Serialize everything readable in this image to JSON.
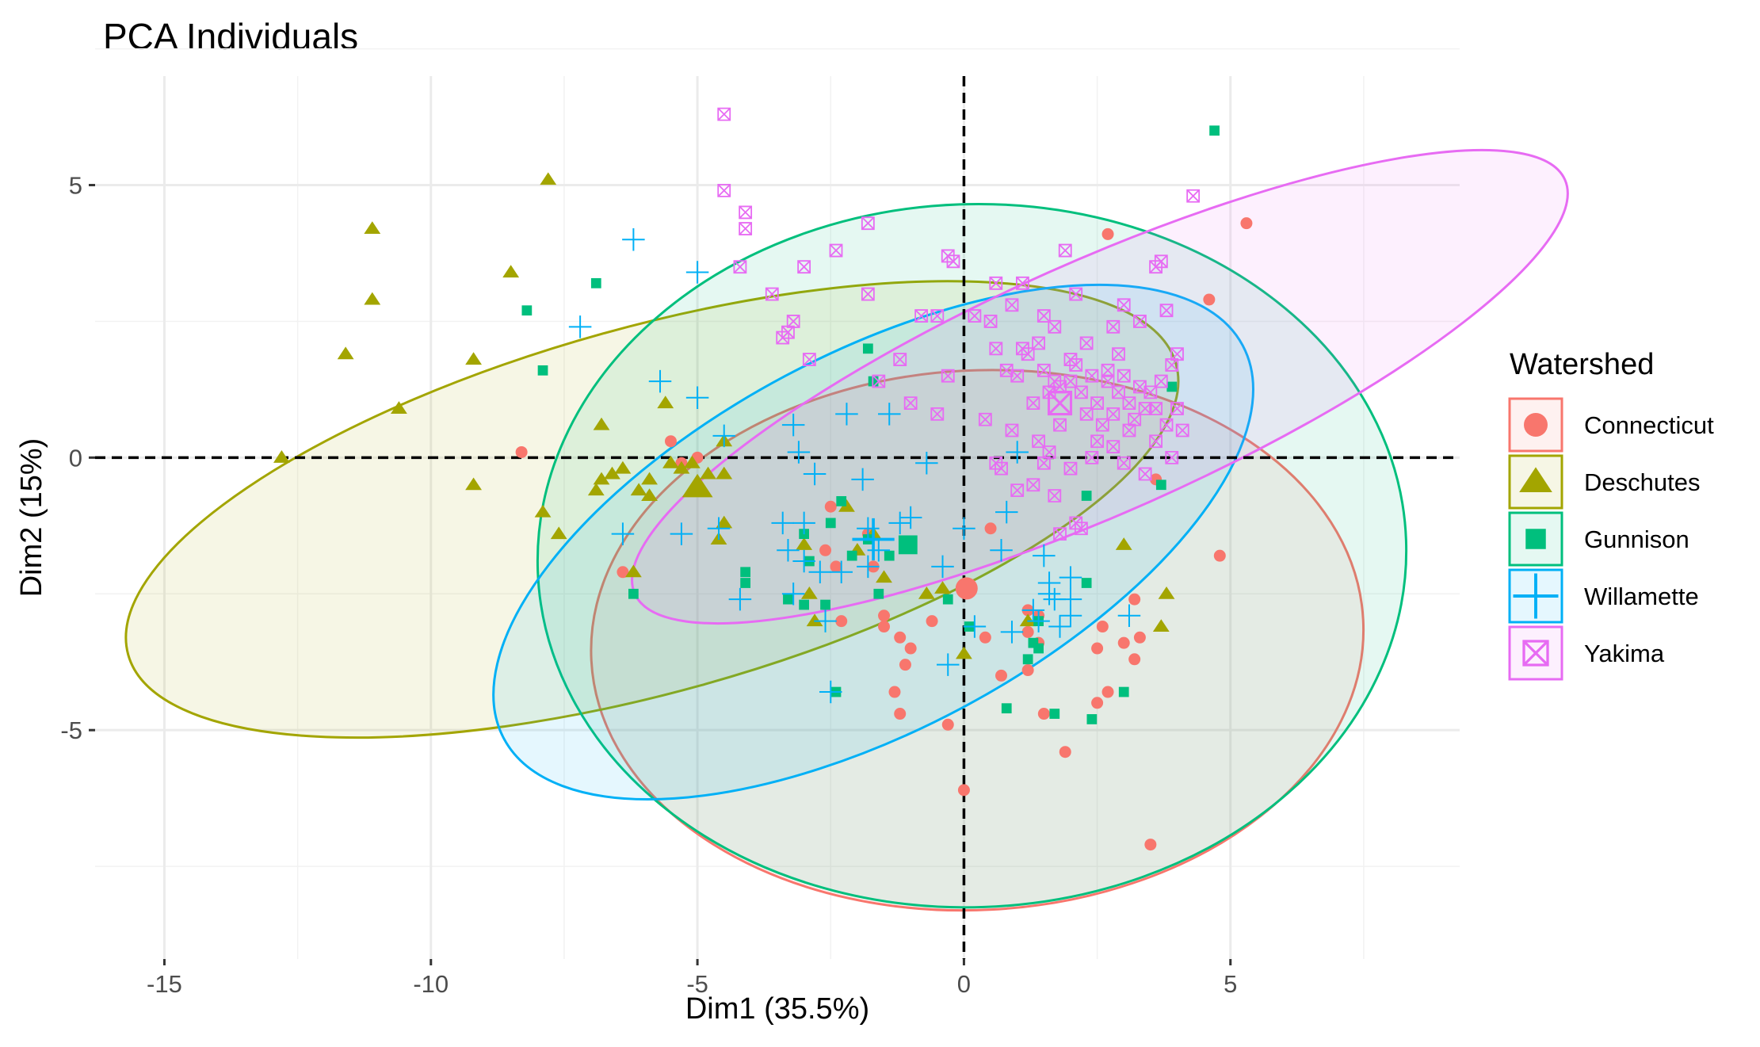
{
  "chart_data": {
    "type": "scatter",
    "title": "PCA Individuals",
    "xlabel": "Dim1 (35.5%)",
    "ylabel": "Dim2 (15%)",
    "xlim": [
      -16.3,
      9.3
    ],
    "ylim": [
      -9.2,
      7.0
    ],
    "x_ticks": [
      -15,
      -10,
      -5,
      0,
      5
    ],
    "x_tick_labels": [
      "-15",
      "-10",
      "-5",
      "0",
      "5"
    ],
    "y_ticks": [
      -5,
      0,
      5
    ],
    "y_tick_labels": [
      "-5",
      "0",
      "5"
    ],
    "grid": true,
    "reference_lines": {
      "x": 0,
      "y": 0,
      "style": "dashed"
    },
    "legend": {
      "title": "Watershed",
      "position": "right"
    },
    "series": [
      {
        "name": "Connecticut",
        "color": "#F8766D",
        "marker": "circle",
        "centroid": [
          0.05,
          -2.4
        ],
        "ellipse": {
          "cx": 0.25,
          "cy": -3.35,
          "rx": 7.25,
          "ry": 4.95,
          "angle": -3
        },
        "points": [
          [
            -8.3,
            0.1
          ],
          [
            -6.4,
            -2.1
          ],
          [
            -5.5,
            0.3
          ],
          [
            -5.3,
            -0.1
          ],
          [
            -5.0,
            0.0
          ],
          [
            -2.5,
            -0.9
          ],
          [
            -2.6,
            -1.7
          ],
          [
            -2.4,
            -2.0
          ],
          [
            -1.8,
            -1.4
          ],
          [
            -1.7,
            -2.0
          ],
          [
            -1.5,
            -2.9
          ],
          [
            -2.3,
            -3.0
          ],
          [
            -1.5,
            -3.1
          ],
          [
            -1.2,
            -3.3
          ],
          [
            -1.0,
            -3.5
          ],
          [
            -1.1,
            -3.8
          ],
          [
            -1.3,
            -4.3
          ],
          [
            -1.2,
            -4.7
          ],
          [
            -0.6,
            -3.0
          ],
          [
            -0.3,
            -4.9
          ],
          [
            0.0,
            -6.1
          ],
          [
            0.5,
            -1.3
          ],
          [
            0.4,
            -3.3
          ],
          [
            0.7,
            -4.0
          ],
          [
            1.2,
            -2.8
          ],
          [
            1.2,
            -3.2
          ],
          [
            1.2,
            -3.9
          ],
          [
            1.4,
            -2.9
          ],
          [
            1.4,
            -3.4
          ],
          [
            1.5,
            -4.7
          ],
          [
            1.9,
            -5.4
          ],
          [
            2.5,
            -3.5
          ],
          [
            2.6,
            -3.1
          ],
          [
            2.7,
            -4.3
          ],
          [
            2.5,
            -4.5
          ],
          [
            3.0,
            -3.4
          ],
          [
            3.2,
            -3.7
          ],
          [
            3.2,
            -2.6
          ],
          [
            3.5,
            -7.1
          ],
          [
            3.3,
            -3.3
          ],
          [
            2.7,
            4.1
          ],
          [
            3.6,
            -0.4
          ],
          [
            4.6,
            2.9
          ],
          [
            4.8,
            -1.8
          ],
          [
            5.3,
            4.3
          ]
        ]
      },
      {
        "name": "Deschutes",
        "color": "#A3A500",
        "marker": "triangle",
        "centroid": [
          -5.0,
          -0.55
        ],
        "ellipse": {
          "cx": -5.85,
          "cy": -0.95,
          "rx": 10.2,
          "ry": 3.35,
          "angle": -15.5
        },
        "points": [
          [
            -12.8,
            0.0
          ],
          [
            -11.6,
            1.9
          ],
          [
            -11.1,
            2.9
          ],
          [
            -11.1,
            4.2
          ],
          [
            -10.6,
            0.9
          ],
          [
            -9.2,
            1.8
          ],
          [
            -9.2,
            -0.5
          ],
          [
            -8.5,
            3.4
          ],
          [
            -7.8,
            5.1
          ],
          [
            -7.9,
            -1.0
          ],
          [
            -7.6,
            -1.4
          ],
          [
            -6.8,
            -0.4
          ],
          [
            -6.8,
            0.6
          ],
          [
            -6.9,
            -0.6
          ],
          [
            -6.6,
            -0.3
          ],
          [
            -6.4,
            -0.2
          ],
          [
            -6.1,
            -0.6
          ],
          [
            -6.2,
            -2.1
          ],
          [
            -5.9,
            -0.4
          ],
          [
            -5.9,
            -0.7
          ],
          [
            -5.5,
            -0.1
          ],
          [
            -5.6,
            1.0
          ],
          [
            -5.3,
            -0.2
          ],
          [
            -5.1,
            -0.1
          ],
          [
            -4.6,
            -1.5
          ],
          [
            -4.5,
            -0.3
          ],
          [
            -4.5,
            0.3
          ],
          [
            -4.8,
            -0.3
          ],
          [
            -4.5,
            -1.2
          ],
          [
            -3.0,
            -1.6
          ],
          [
            -2.9,
            -2.5
          ],
          [
            -2.8,
            -3.0
          ],
          [
            -2.2,
            -0.9
          ],
          [
            -2.0,
            -1.7
          ],
          [
            -1.7,
            -1.4
          ],
          [
            -1.5,
            -2.2
          ],
          [
            -0.7,
            -2.5
          ],
          [
            -0.4,
            -2.4
          ],
          [
            0.0,
            -3.6
          ],
          [
            1.2,
            -3.0
          ],
          [
            3.0,
            -1.6
          ],
          [
            3.8,
            -2.5
          ],
          [
            3.7,
            -3.1
          ]
        ]
      },
      {
        "name": "Gunnison",
        "color": "#00BF7D",
        "marker": "square",
        "centroid": [
          -1.05,
          -1.6
        ],
        "ellipse": {
          "cx": 0.15,
          "cy": -1.8,
          "rx": 8.15,
          "ry": 6.45,
          "angle": -2
        },
        "points": [
          [
            -8.2,
            2.7
          ],
          [
            -7.9,
            1.6
          ],
          [
            -6.9,
            3.2
          ],
          [
            -6.2,
            -2.5
          ],
          [
            -4.1,
            -2.1
          ],
          [
            -4.1,
            -2.3
          ],
          [
            -3.3,
            -2.6
          ],
          [
            -3.0,
            -2.7
          ],
          [
            -3.0,
            -1.4
          ],
          [
            -2.9,
            -1.9
          ],
          [
            -2.6,
            -2.7
          ],
          [
            -2.5,
            -1.2
          ],
          [
            -2.3,
            -0.8
          ],
          [
            -2.4,
            -4.3
          ],
          [
            -2.1,
            -1.8
          ],
          [
            -1.8,
            -1.5
          ],
          [
            -1.8,
            2.0
          ],
          [
            -1.7,
            1.4
          ],
          [
            -1.6,
            -2.5
          ],
          [
            -1.4,
            -1.8
          ],
          [
            -0.3,
            -2.6
          ],
          [
            0.1,
            -3.1
          ],
          [
            0.8,
            -4.6
          ],
          [
            1.3,
            -3.4
          ],
          [
            1.2,
            -3.7
          ],
          [
            1.4,
            -3.5
          ],
          [
            1.4,
            -3.0
          ],
          [
            1.7,
            -4.7
          ],
          [
            2.3,
            -2.3
          ],
          [
            2.4,
            -4.8
          ],
          [
            2.3,
            -0.7
          ],
          [
            3.0,
            -4.3
          ],
          [
            3.7,
            -0.5
          ],
          [
            3.9,
            1.3
          ],
          [
            4.7,
            6.0
          ]
        ]
      },
      {
        "name": "Willamette",
        "color": "#00B0F6",
        "marker": "plus",
        "centroid": [
          -1.7,
          -1.5
        ],
        "ellipse": {
          "cx": -1.7,
          "cy": -1.55,
          "rx": 7.85,
          "ry": 3.45,
          "angle": -28
        },
        "points": [
          [
            -6.2,
            4.0
          ],
          [
            -5.0,
            3.4
          ],
          [
            -7.2,
            2.4
          ],
          [
            -5.7,
            1.4
          ],
          [
            -5.0,
            1.1
          ],
          [
            -4.5,
            0.4
          ],
          [
            -6.4,
            -1.4
          ],
          [
            -5.3,
            -1.4
          ],
          [
            -4.6,
            -1.3
          ],
          [
            -4.2,
            -2.6
          ],
          [
            -3.4,
            -1.2
          ],
          [
            -3.3,
            -1.7
          ],
          [
            -3.2,
            -2.5
          ],
          [
            -3.0,
            -1.9
          ],
          [
            -3.2,
            0.6
          ],
          [
            -3.1,
            0.1
          ],
          [
            -2.8,
            -0.3
          ],
          [
            -3.0,
            -1.2
          ],
          [
            -2.7,
            -2.1
          ],
          [
            -2.6,
            -3.0
          ],
          [
            -2.3,
            -2.1
          ],
          [
            -2.2,
            0.8
          ],
          [
            -1.8,
            -2.0
          ],
          [
            -1.8,
            -1.3
          ],
          [
            -1.9,
            -0.4
          ],
          [
            -1.6,
            -1.7
          ],
          [
            -1.4,
            0.8
          ],
          [
            -1.0,
            -1.1
          ],
          [
            -0.7,
            -0.1
          ],
          [
            -0.4,
            -2.0
          ],
          [
            0.0,
            -1.3
          ],
          [
            0.2,
            -3.1
          ],
          [
            0.7,
            -1.7
          ],
          [
            0.8,
            -1.0
          ],
          [
            1.3,
            -2.8
          ],
          [
            1.4,
            -3.0
          ],
          [
            1.5,
            -1.8
          ],
          [
            1.6,
            -2.3
          ],
          [
            1.6,
            -2.5
          ],
          [
            1.7,
            -2.6
          ],
          [
            1.8,
            -3.1
          ],
          [
            0.9,
            -3.2
          ],
          [
            2.0,
            -2.9
          ],
          [
            2.0,
            -2.2
          ],
          [
            2.0,
            -2.6
          ],
          [
            3.1,
            -2.9
          ],
          [
            -2.5,
            -4.3
          ],
          [
            -0.3,
            -3.8
          ],
          [
            -1.2,
            -1.2
          ],
          [
            1.0,
            0.1
          ]
        ]
      },
      {
        "name": "Yakima",
        "color": "#E76BF3",
        "marker": "square-x",
        "centroid": [
          1.8,
          1.0
        ],
        "ellipse": {
          "cx": 2.55,
          "cy": 1.3,
          "rx": 9.55,
          "ry": 2.3,
          "angle": -24
        },
        "points": [
          [
            -4.5,
            6.3
          ],
          [
            -4.5,
            4.9
          ],
          [
            -4.1,
            4.5
          ],
          [
            -4.1,
            4.2
          ],
          [
            -4.2,
            3.5
          ],
          [
            -3.6,
            3.0
          ],
          [
            -3.4,
            2.2
          ],
          [
            -3.0,
            3.5
          ],
          [
            -3.3,
            2.3
          ],
          [
            -2.9,
            1.8
          ],
          [
            -3.2,
            2.5
          ],
          [
            -2.4,
            3.8
          ],
          [
            -1.8,
            4.3
          ],
          [
            -1.8,
            3.0
          ],
          [
            -1.6,
            1.4
          ],
          [
            -1.2,
            1.8
          ],
          [
            -1.0,
            1.0
          ],
          [
            -0.8,
            2.6
          ],
          [
            -0.5,
            2.6
          ],
          [
            -0.3,
            3.7
          ],
          [
            -0.2,
            3.6
          ],
          [
            0.2,
            2.6
          ],
          [
            0.5,
            2.5
          ],
          [
            0.6,
            3.2
          ],
          [
            0.6,
            2.0
          ],
          [
            0.8,
            1.6
          ],
          [
            1.0,
            1.5
          ],
          [
            1.1,
            2.0
          ],
          [
            1.2,
            1.9
          ],
          [
            1.3,
            1.0
          ],
          [
            1.4,
            2.1
          ],
          [
            1.5,
            1.6
          ],
          [
            1.6,
            1.2
          ],
          [
            1.7,
            1.4
          ],
          [
            1.8,
            1.3
          ],
          [
            1.8,
            0.6
          ],
          [
            2.0,
            1.4
          ],
          [
            2.1,
            1.7
          ],
          [
            2.2,
            1.2
          ],
          [
            2.3,
            0.8
          ],
          [
            2.4,
            1.5
          ],
          [
            2.5,
            1.0
          ],
          [
            2.6,
            0.6
          ],
          [
            2.7,
            1.6
          ],
          [
            2.7,
            1.4
          ],
          [
            2.8,
            0.8
          ],
          [
            2.9,
            1.2
          ],
          [
            3.0,
            1.5
          ],
          [
            3.1,
            1.0
          ],
          [
            3.2,
            0.7
          ],
          [
            3.3,
            1.3
          ],
          [
            3.4,
            0.9
          ],
          [
            3.5,
            1.2
          ],
          [
            3.6,
            0.9
          ],
          [
            3.7,
            1.4
          ],
          [
            3.8,
            0.6
          ],
          [
            3.9,
            1.7
          ],
          [
            4.0,
            0.9
          ],
          [
            4.1,
            0.5
          ],
          [
            -0.3,
            1.5
          ],
          [
            -0.5,
            0.8
          ],
          [
            0.4,
            0.7
          ],
          [
            0.9,
            0.5
          ],
          [
            1.4,
            0.3
          ],
          [
            1.6,
            0.1
          ],
          [
            2.0,
            -0.2
          ],
          [
            2.4,
            0.0
          ],
          [
            2.8,
            0.2
          ],
          [
            3.0,
            -0.1
          ],
          [
            3.4,
            -0.3
          ],
          [
            3.6,
            0.3
          ],
          [
            3.9,
            0.0
          ],
          [
            0.7,
            -0.2
          ],
          [
            1.3,
            -0.5
          ],
          [
            1.7,
            -0.7
          ],
          [
            2.1,
            -1.2
          ],
          [
            2.2,
            -1.3
          ],
          [
            1.8,
            -1.4
          ],
          [
            1.7,
            2.4
          ],
          [
            2.3,
            2.1
          ],
          [
            2.8,
            2.4
          ],
          [
            3.0,
            2.8
          ],
          [
            3.3,
            2.5
          ],
          [
            3.6,
            3.5
          ],
          [
            3.7,
            3.6
          ],
          [
            3.8,
            2.7
          ],
          [
            4.0,
            1.9
          ],
          [
            4.3,
            4.8
          ],
          [
            0.6,
            -0.1
          ],
          [
            1.0,
            -0.6
          ],
          [
            1.5,
            -0.1
          ],
          [
            2.5,
            0.3
          ],
          [
            3.1,
            0.5
          ],
          [
            1.1,
            3.2
          ],
          [
            1.5,
            2.6
          ],
          [
            0.9,
            2.8
          ],
          [
            2.1,
            3.0
          ],
          [
            1.9,
            3.8
          ],
          [
            2.0,
            1.8
          ],
          [
            2.9,
            1.9
          ]
        ]
      }
    ]
  }
}
